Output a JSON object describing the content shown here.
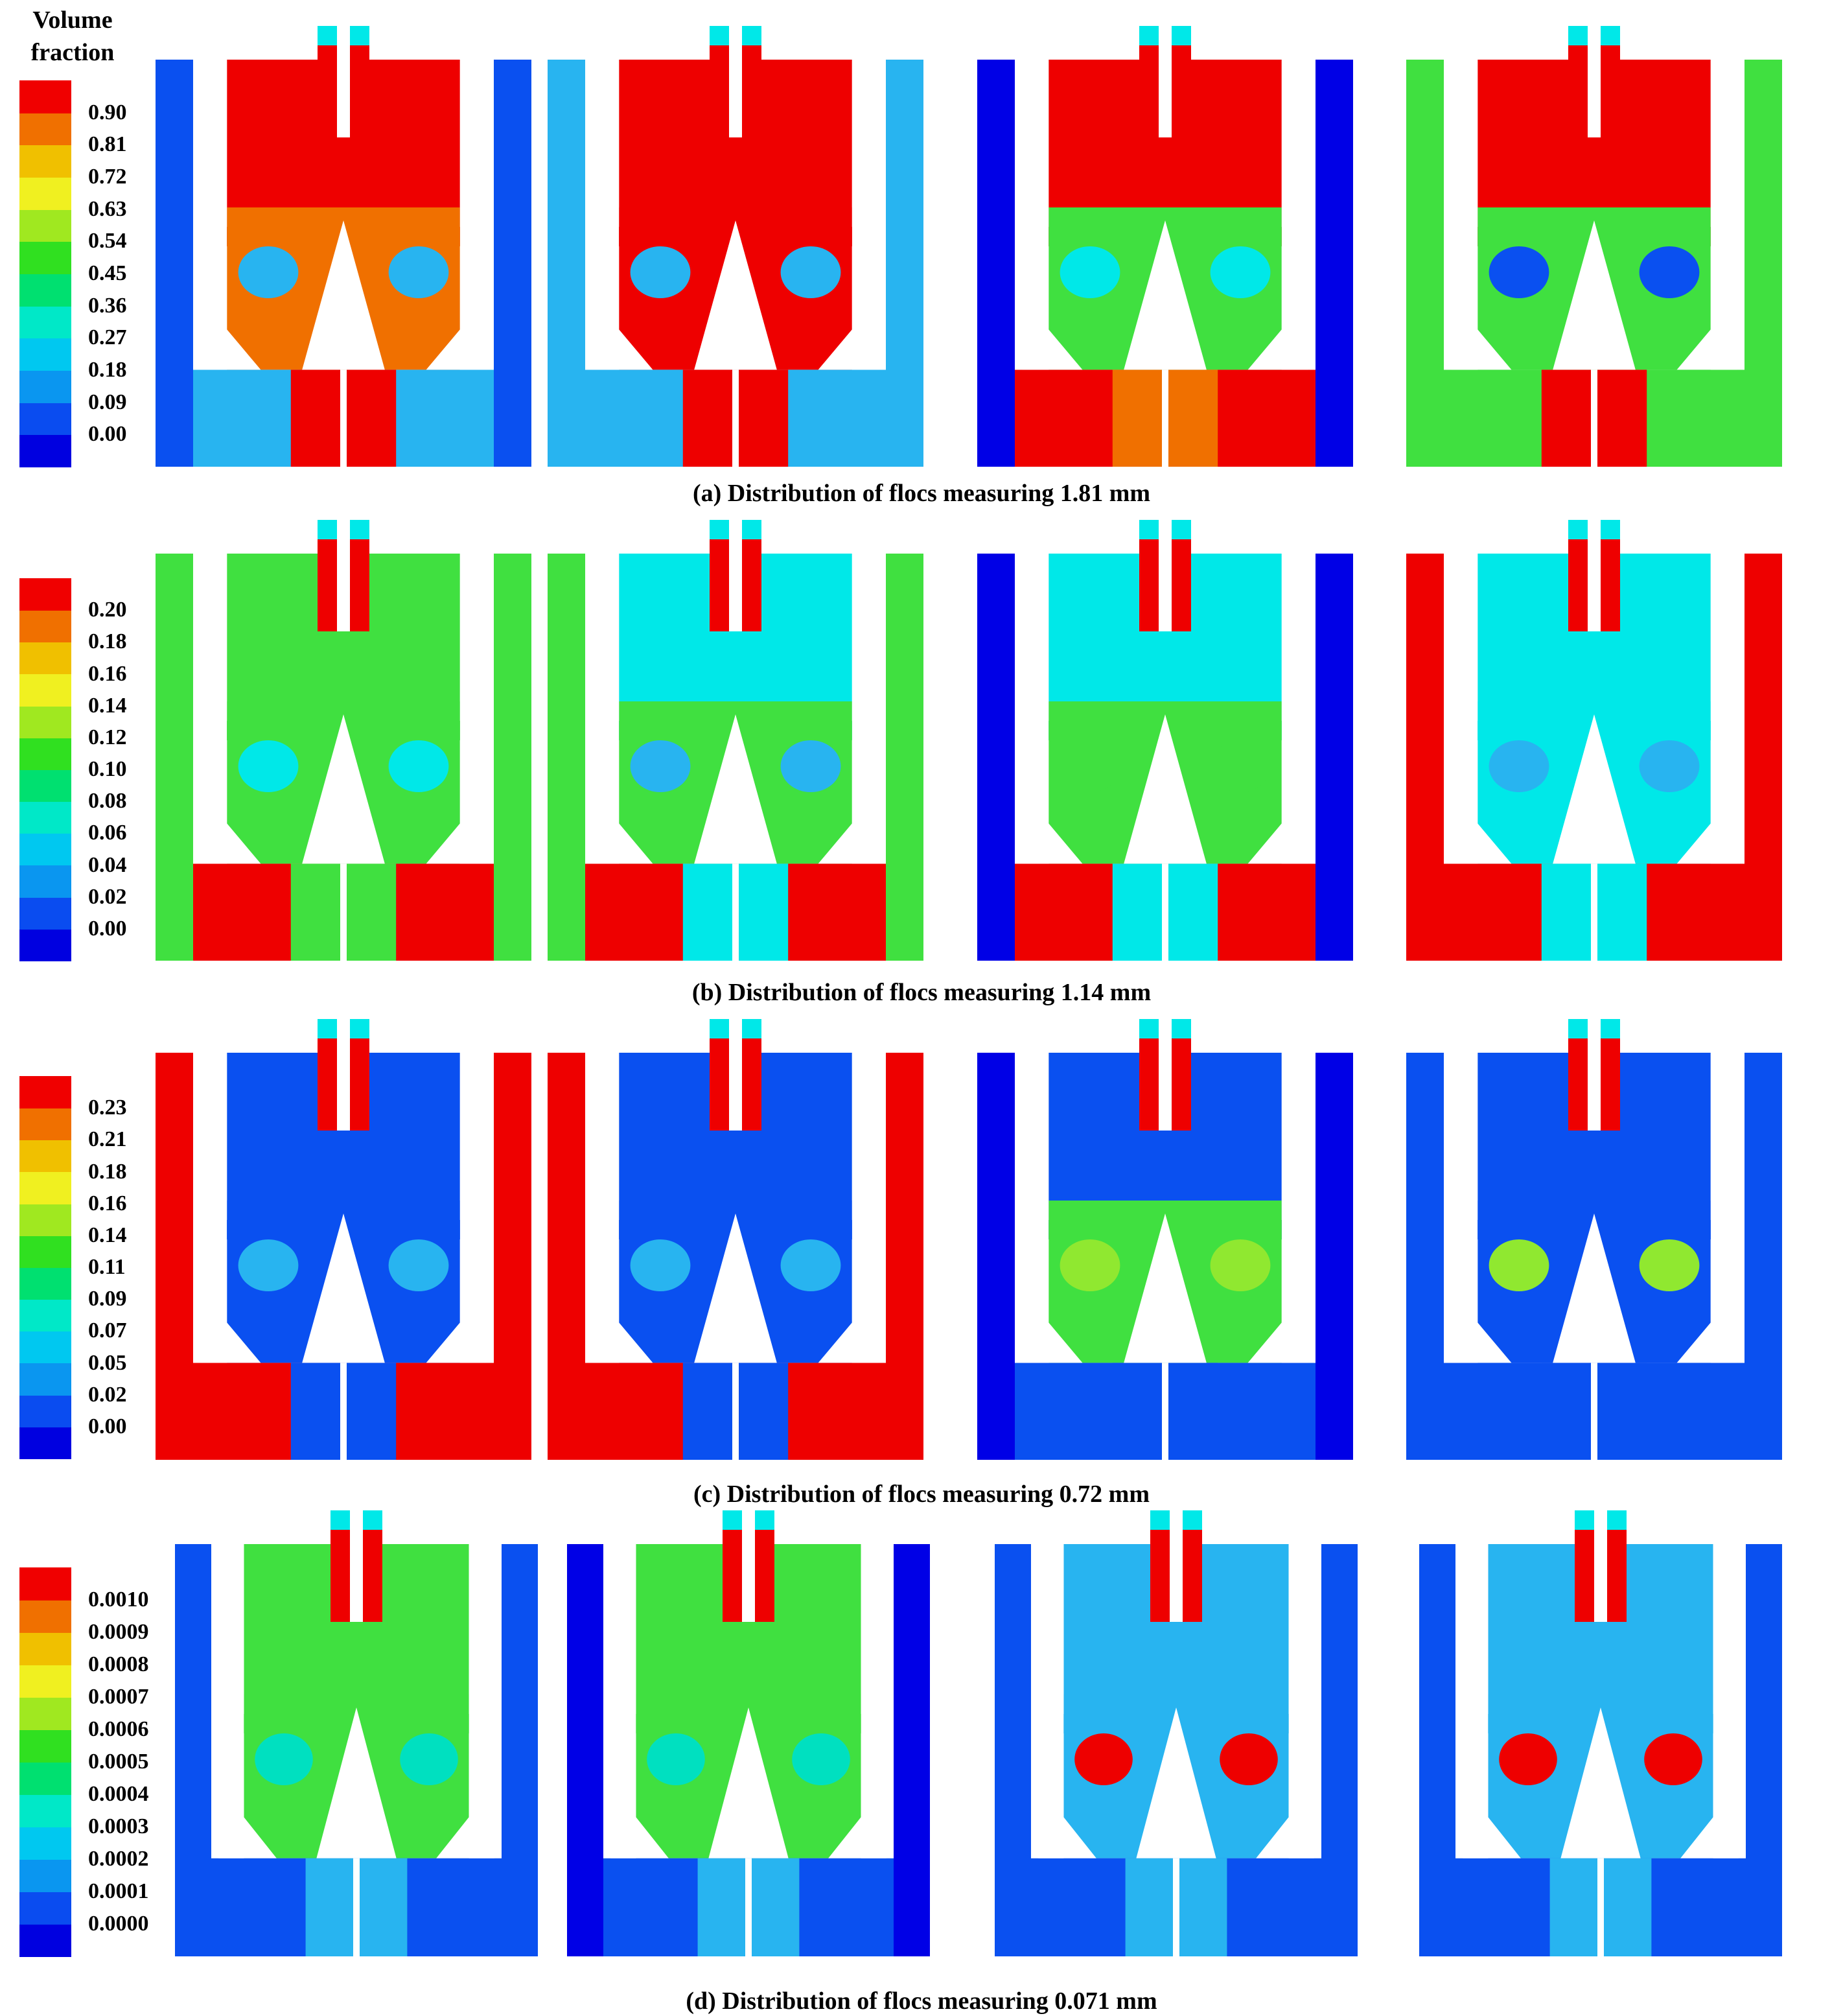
{
  "legend_title_line1": "Volume",
  "legend_title_line2": "fraction",
  "colormap": [
    "#0000e0",
    "#0a4cf0",
    "#0a96f0",
    "#00c8f0",
    "#00e8c8",
    "#00e070",
    "#30e020",
    "#a0e820",
    "#f0f020",
    "#f0c000",
    "#f07000",
    "#f00000"
  ],
  "field_colors": {
    "red": "#ee0000",
    "orange": "#f07000",
    "yellow": "#e8f000",
    "green": "#40e040",
    "lime": "#90e830",
    "teal": "#00e0c0",
    "cyan": "#00e8e8",
    "lightblue": "#28b4f0",
    "blue": "#0a50f0",
    "darkblue": "#0000e6"
  },
  "rows": [
    {
      "caption": "(a) Distribution of flocs measuring  1.81 mm",
      "ticks": [
        "0.90",
        "0.81",
        "0.72",
        "0.63",
        "0.54",
        "0.45",
        "0.36",
        "0.27",
        "0.18",
        "0.09",
        "0.00"
      ],
      "panels": [
        {
          "outer": "blue",
          "chamber": "red",
          "mid": "orange",
          "lower": "lightblue",
          "bottom": "red",
          "blob": "lightblue",
          "chimney": "red"
        },
        {
          "outer": "lightblue",
          "chamber": "red",
          "mid": "red",
          "lower": "lightblue",
          "bottom": "red",
          "blob": "lightblue",
          "chimney": "red"
        },
        {
          "outer": "darkblue",
          "chamber": "red",
          "mid": "green",
          "lower": "red",
          "bottom": "orange",
          "blob": "cyan",
          "chimney": "red"
        },
        {
          "outer": "green",
          "chamber": "red",
          "mid": "green",
          "lower": "green",
          "bottom": "red",
          "blob": "blue",
          "chimney": "red"
        }
      ]
    },
    {
      "caption": "(b) Distribution of flocs measuring  1.14 mm",
      "ticks": [
        "0.20",
        "0.18",
        "0.16",
        "0.14",
        "0.12",
        "0.10",
        "0.08",
        "0.06",
        "0.04",
        "0.02",
        "0.00"
      ],
      "panels": [
        {
          "outer": "green",
          "chamber": "green",
          "mid": "green",
          "lower": "red",
          "bottom": "green",
          "blob": "cyan",
          "chimney": "red"
        },
        {
          "outer": "green",
          "chamber": "cyan",
          "mid": "green",
          "lower": "red",
          "bottom": "cyan",
          "blob": "lightblue",
          "chimney": "red"
        },
        {
          "outer": "darkblue",
          "chamber": "cyan",
          "mid": "green",
          "lower": "red",
          "bottom": "cyan",
          "blob": "green",
          "chimney": "red"
        },
        {
          "outer": "red",
          "chamber": "cyan",
          "mid": "cyan",
          "lower": "red",
          "bottom": "cyan",
          "blob": "lightblue",
          "chimney": "red"
        }
      ]
    },
    {
      "caption": "(c) Distribution of flocs measuring  0.72 mm",
      "ticks": [
        "0.23",
        "0.21",
        "0.18",
        "0.16",
        "0.14",
        "0.11",
        "0.09",
        "0.07",
        "0.05",
        "0.02",
        "0.00"
      ],
      "panels": [
        {
          "outer": "red",
          "chamber": "blue",
          "mid": "blue",
          "lower": "red",
          "bottom": "blue",
          "blob": "lightblue",
          "chimney": "red"
        },
        {
          "outer": "red",
          "chamber": "blue",
          "mid": "blue",
          "lower": "red",
          "bottom": "blue",
          "blob": "lightblue",
          "chimney": "red"
        },
        {
          "outer": "darkblue",
          "chamber": "blue",
          "mid": "green",
          "lower": "blue",
          "bottom": "blue",
          "blob": "lime",
          "chimney": "red"
        },
        {
          "outer": "blue",
          "chamber": "blue",
          "mid": "blue",
          "lower": "blue",
          "bottom": "blue",
          "blob": "lime",
          "chimney": "red"
        }
      ]
    },
    {
      "caption": "(d) Distribution of flocs measuring  0.071 mm",
      "ticks": [
        "0.0010",
        "0.0009",
        "0.0008",
        "0.0007",
        "0.0006",
        "0.0005",
        "0.0004",
        "0.0003",
        "0.0002",
        "0.0001",
        "0.0000"
      ],
      "panels": [
        {
          "outer": "blue",
          "chamber": "green",
          "mid": "green",
          "lower": "blue",
          "bottom": "lightblue",
          "blob": "teal",
          "chimney": "red"
        },
        {
          "outer": "darkblue",
          "chamber": "green",
          "mid": "green",
          "lower": "blue",
          "bottom": "lightblue",
          "blob": "teal",
          "chimney": "red"
        },
        {
          "outer": "blue",
          "chamber": "lightblue",
          "mid": "lightblue",
          "lower": "blue",
          "bottom": "lightblue",
          "blob": "red",
          "chimney": "red"
        },
        {
          "outer": "blue",
          "chamber": "lightblue",
          "mid": "lightblue",
          "lower": "blue",
          "bottom": "lightblue",
          "blob": "red",
          "chimney": "red"
        }
      ]
    }
  ]
}
